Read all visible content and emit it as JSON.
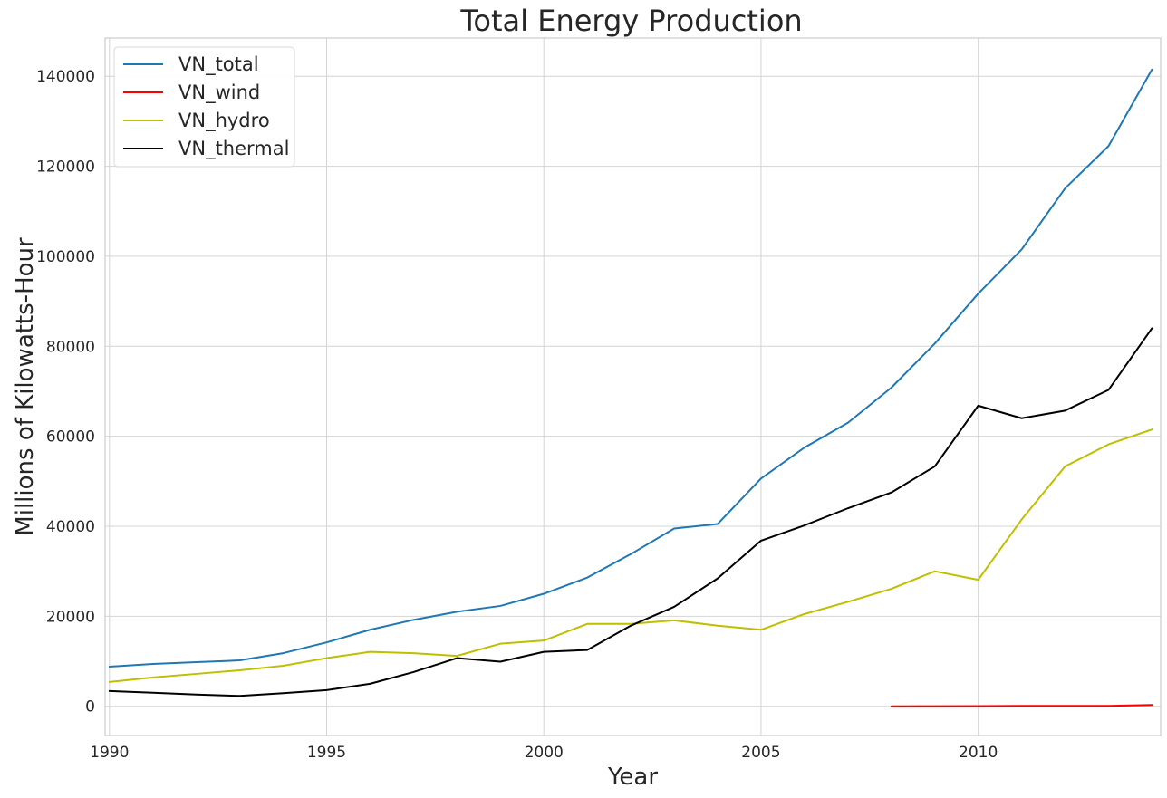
{
  "chart_data": {
    "type": "line",
    "title": "Total Energy Production",
    "xlabel": "Year",
    "ylabel": "Millions of Kilowatts-Hour",
    "xlim": [
      1989.9,
      2014.2
    ],
    "ylim": [
      -6500,
      148500
    ],
    "xticks": [
      1990,
      1995,
      2000,
      2005,
      2010
    ],
    "yticks": [
      0,
      20000,
      40000,
      60000,
      80000,
      100000,
      120000,
      140000
    ],
    "grid": true,
    "legend_position": "top-left",
    "series": [
      {
        "name": "VN_total",
        "color": "#1f77b4",
        "x": [
          1990,
          1991,
          1992,
          1993,
          1994,
          1995,
          1996,
          1997,
          1998,
          1999,
          2000,
          2001,
          2002,
          2003,
          2004,
          2005,
          2006,
          2007,
          2008,
          2009,
          2010,
          2011,
          2012,
          2013,
          2014
        ],
        "values": [
          8800,
          9400,
          9800,
          10200,
          11800,
          14200,
          17000,
          19200,
          21000,
          22300,
          25000,
          28600,
          33800,
          39500,
          40500,
          50600,
          57500,
          63000,
          70800,
          80600,
          91700,
          101500,
          115100,
          124500,
          141500
        ]
      },
      {
        "name": "VN_wind",
        "color": "#ff0000",
        "x": [
          2008,
          2009,
          2010,
          2011,
          2012,
          2013,
          2014
        ],
        "values": [
          0,
          10,
          50,
          90,
          90,
          90,
          300
        ]
      },
      {
        "name": "VN_hydro",
        "color": "#bfbf00",
        "x": [
          1990,
          1991,
          1992,
          1993,
          1994,
          1995,
          1996,
          1997,
          1998,
          1999,
          2000,
          2001,
          2002,
          2003,
          2004,
          2005,
          2006,
          2007,
          2008,
          2009,
          2010,
          2011,
          2012,
          2013,
          2014
        ],
        "values": [
          5400,
          6400,
          7200,
          8000,
          9000,
          10700,
          12100,
          11800,
          11200,
          13900,
          14600,
          18300,
          18300,
          19100,
          17900,
          17000,
          20500,
          23200,
          26100,
          30000,
          28100,
          41500,
          53300,
          58200,
          61500
        ]
      },
      {
        "name": "VN_thermal",
        "color": "#000000",
        "x": [
          1990,
          1991,
          1992,
          1993,
          1994,
          1995,
          1996,
          1997,
          1998,
          1999,
          2000,
          2001,
          2002,
          2003,
          2004,
          2005,
          2006,
          2007,
          2008,
          2009,
          2010,
          2011,
          2012,
          2013,
          2014
        ],
        "values": [
          3400,
          3000,
          2600,
          2300,
          2900,
          3600,
          5000,
          7600,
          10700,
          9900,
          12100,
          12500,
          17900,
          22100,
          28400,
          36800,
          40200,
          44000,
          47500,
          53300,
          66800,
          64000,
          65700,
          70300,
          84000
        ]
      }
    ]
  }
}
